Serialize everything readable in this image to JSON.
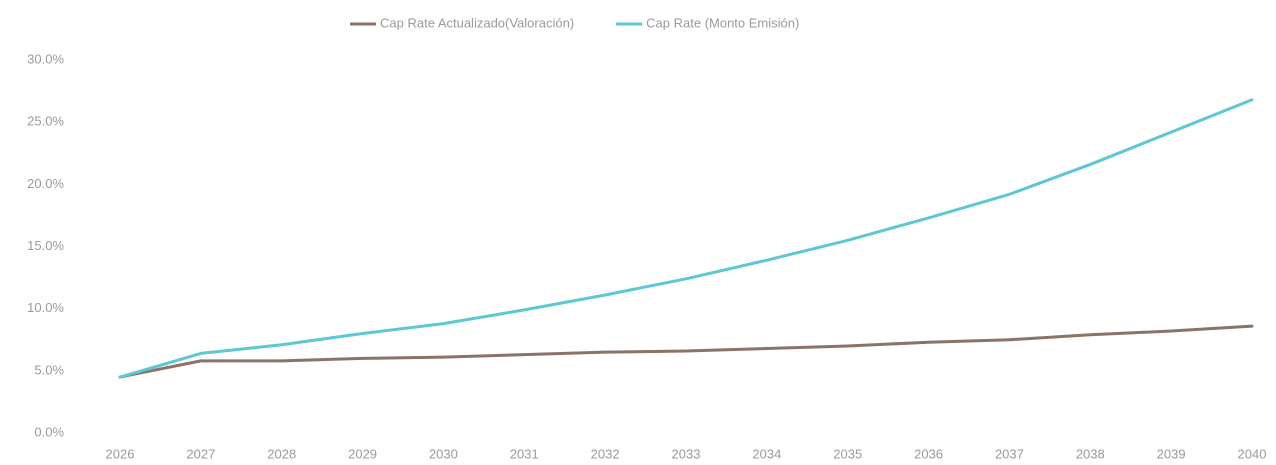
{
  "chart_data": {
    "type": "line",
    "categories": [
      "2026",
      "2027",
      "2028",
      "2029",
      "2030",
      "2031",
      "2032",
      "2033",
      "2034",
      "2035",
      "2036",
      "2037",
      "2038",
      "2039",
      "2040"
    ],
    "series": [
      {
        "name": "Cap Rate Actualizado(Valoración)",
        "color": "#8b7367",
        "values": [
          4.5,
          5.8,
          5.8,
          6.0,
          6.1,
          6.3,
          6.5,
          6.6,
          6.8,
          7.0,
          7.3,
          7.5,
          7.9,
          8.2,
          8.6
        ]
      },
      {
        "name": "Cap Rate (Monto Emisión)",
        "color": "#5bc8d2",
        "values": [
          4.5,
          6.4,
          7.1,
          8.0,
          8.8,
          9.9,
          11.1,
          12.4,
          13.9,
          15.5,
          17.3,
          19.2,
          21.6,
          24.2,
          26.8
        ]
      }
    ],
    "ylim": [
      0,
      30
    ],
    "yticks": [
      {
        "value": 0,
        "label": "0.0%"
      },
      {
        "value": 5,
        "label": "5.0%"
      },
      {
        "value": 10,
        "label": "10.0%"
      },
      {
        "value": 15,
        "label": "15.0%"
      },
      {
        "value": 20,
        "label": "20.0%"
      },
      {
        "value": 25,
        "label": "25.0%"
      },
      {
        "value": 30,
        "label": "30.0%"
      }
    ],
    "legend": "top"
  }
}
